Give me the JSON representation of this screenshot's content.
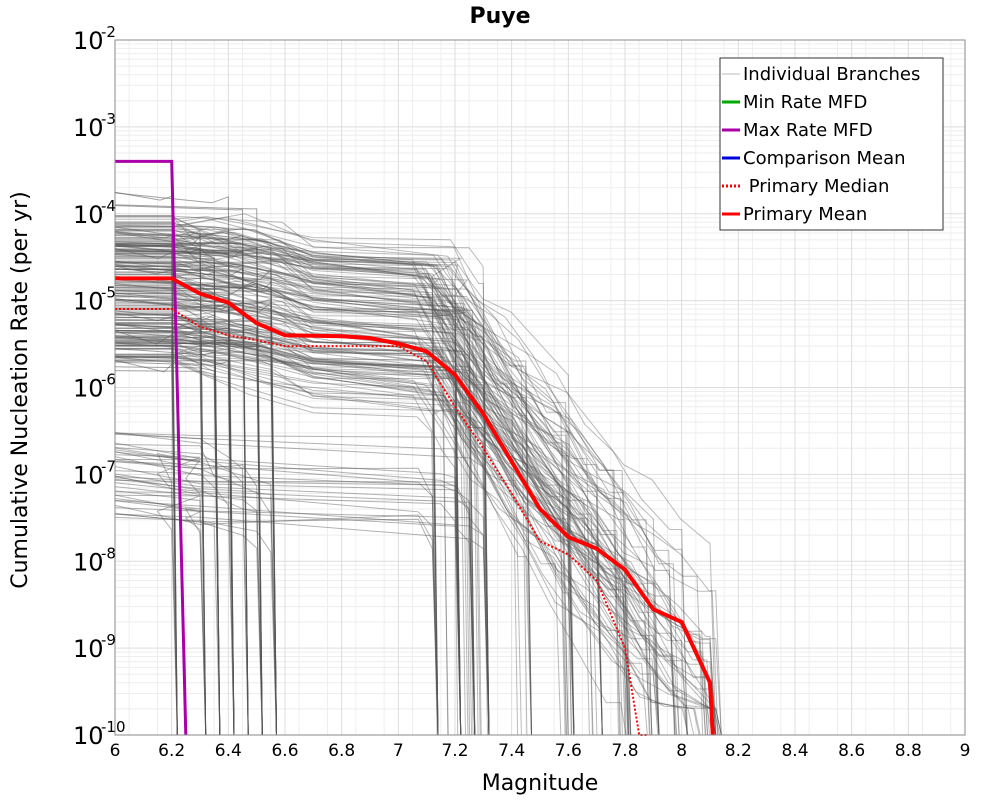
{
  "chart_data": {
    "type": "line",
    "title": "Puye",
    "xlabel": "Magnitude",
    "ylabel": "Cumulative Nucleation Rate (per yr)",
    "xlim": [
      6,
      9
    ],
    "ylim": [
      1e-10,
      0.01
    ],
    "yscale": "log",
    "grid": true,
    "legend_position": "top-right",
    "x_ticks": [
      "6",
      "6.2",
      "6.4",
      "6.6",
      "6.8",
      "7",
      "7.2",
      "7.4",
      "7.6",
      "7.8",
      "8",
      "8.2",
      "8.4",
      "8.6",
      "8.8",
      "9"
    ],
    "y_ticks": [
      {
        "base": "10",
        "exp": "-10"
      },
      {
        "base": "10",
        "exp": "-9"
      },
      {
        "base": "10",
        "exp": "-8"
      },
      {
        "base": "10",
        "exp": "-7"
      },
      {
        "base": "10",
        "exp": "-6"
      },
      {
        "base": "10",
        "exp": "-5"
      },
      {
        "base": "10",
        "exp": "-4"
      },
      {
        "base": "10",
        "exp": "-3"
      },
      {
        "base": "10",
        "exp": "-2"
      }
    ],
    "legend": [
      {
        "label": "Individual Branches",
        "color": "#b8b8b8",
        "style": "solid"
      },
      {
        "label": "Min Rate MFD",
        "color": "#00aa00",
        "style": "solid"
      },
      {
        "label": "Max Rate MFD",
        "color": "#aa00aa",
        "style": "solid"
      },
      {
        "label": "Comparison Mean",
        "color": "#0000dd",
        "style": "solid"
      },
      {
        "label": " Primary Median",
        "color": "#ff0000",
        "style": "dotted"
      },
      {
        "label": "Primary Mean",
        "color": "#ff0000",
        "style": "solid"
      }
    ],
    "series": [
      {
        "name": "Max Rate MFD",
        "color": "#aa00aa",
        "x": [
          6.0,
          6.2,
          6.25
        ],
        "y": [
          0.0004,
          0.0004,
          1e-10
        ]
      },
      {
        "name": "Primary Median",
        "color": "#ff0000",
        "style": "dotted",
        "x": [
          6.0,
          6.2,
          6.3,
          6.4,
          6.5,
          6.6,
          6.8,
          6.9,
          7.0,
          7.1,
          7.2,
          7.3,
          7.4,
          7.5,
          7.6,
          7.7,
          7.8,
          7.85,
          7.88
        ],
        "y": [
          8e-06,
          8e-06,
          5e-06,
          4e-06,
          3.5e-06,
          3e-06,
          3e-06,
          3e-06,
          3e-06,
          2e-06,
          6e-07,
          2e-07,
          6e-08,
          1.7e-08,
          1.2e-08,
          6e-09,
          1e-09,
          1e-10,
          1e-10
        ]
      },
      {
        "name": "Primary Mean",
        "color": "#ff0000",
        "style": "solid",
        "x": [
          6.0,
          6.2,
          6.3,
          6.4,
          6.5,
          6.6,
          6.8,
          6.9,
          7.0,
          7.1,
          7.2,
          7.3,
          7.4,
          7.5,
          7.6,
          7.7,
          7.8,
          7.9,
          8.0,
          8.1,
          8.11
        ],
        "y": [
          1.8e-05,
          1.8e-05,
          1.2e-05,
          9.5e-06,
          5.5e-06,
          4e-06,
          3.9e-06,
          3.7e-06,
          3.2e-06,
          2.6e-06,
          1.4e-06,
          5e-07,
          1.4e-07,
          4e-08,
          1.9e-08,
          1.4e-08,
          8e-09,
          2.8e-09,
          2e-09,
          4e-10,
          1e-10
        ]
      }
    ]
  }
}
